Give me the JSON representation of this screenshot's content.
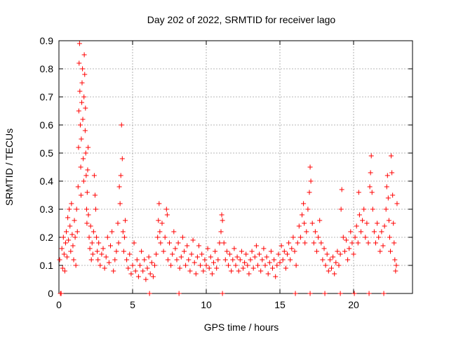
{
  "chart_data": {
    "type": "scatter",
    "title": "Day 202 of 2022, SRMTID for receiver lago",
    "xlabel": "GPS time / hours",
    "ylabel": "SRMTID / TECUs",
    "xlim": [
      0,
      24
    ],
    "ylim": [
      0,
      0.9
    ],
    "xticks": [
      0,
      5,
      10,
      15,
      20
    ],
    "yticks": [
      0,
      0.1,
      0.2,
      0.3,
      0.4,
      0.5,
      0.6,
      0.7,
      0.8,
      0.9
    ],
    "xtick_labels": [
      "0",
      "5",
      "10",
      "15",
      "20"
    ],
    "ytick_labels": [
      "0",
      "0.1",
      "0.2",
      "0.3",
      "0.4",
      "0.5",
      "0.6",
      "0.7",
      "0.8",
      "0.9"
    ],
    "grid": true,
    "marker": "+",
    "color": "#ff0000",
    "series": [
      {
        "name": "SRMTID",
        "points": [
          [
            0.05,
            0.12
          ],
          [
            0.1,
            0.0
          ],
          [
            0.2,
            0.16
          ],
          [
            0.25,
            0.09
          ],
          [
            0.3,
            0.2
          ],
          [
            0.35,
            0.14
          ],
          [
            0.4,
            0.08
          ],
          [
            0.45,
            0.18
          ],
          [
            0.5,
            0.22
          ],
          [
            0.55,
            0.13
          ],
          [
            0.6,
            0.27
          ],
          [
            0.65,
            0.19
          ],
          [
            0.7,
            0.3
          ],
          [
            0.75,
            0.24
          ],
          [
            0.8,
            0.15
          ],
          [
            0.85,
            0.32
          ],
          [
            0.9,
            0.21
          ],
          [
            0.95,
            0.17
          ],
          [
            1.0,
            0.12
          ],
          [
            1.05,
            0.26
          ],
          [
            1.1,
            0.2
          ],
          [
            1.15,
            0.1
          ],
          [
            1.2,
            0.3
          ],
          [
            1.25,
            0.22
          ],
          [
            1.3,
            0.38
          ],
          [
            1.33,
            0.52
          ],
          [
            1.35,
            0.65
          ],
          [
            1.37,
            0.82
          ],
          [
            1.4,
            0.89
          ],
          [
            1.42,
            0.72
          ],
          [
            1.45,
            0.6
          ],
          [
            1.48,
            0.45
          ],
          [
            1.5,
            0.35
          ],
          [
            1.52,
            0.55
          ],
          [
            1.55,
            0.68
          ],
          [
            1.57,
            0.75
          ],
          [
            1.6,
            0.8
          ],
          [
            1.62,
            0.62
          ],
          [
            1.65,
            0.48
          ],
          [
            1.68,
            0.4
          ],
          [
            1.7,
            0.7
          ],
          [
            1.72,
            0.85
          ],
          [
            1.75,
            0.78
          ],
          [
            1.78,
            0.58
          ],
          [
            1.8,
            0.66
          ],
          [
            1.82,
            0.5
          ],
          [
            1.85,
            0.42
          ],
          [
            1.88,
            0.3
          ],
          [
            1.9,
            0.25
          ],
          [
            1.92,
            0.36
          ],
          [
            1.95,
            0.44
          ],
          [
            1.98,
            0.52
          ],
          [
            2.0,
            0.28
          ],
          [
            2.05,
            0.2
          ],
          [
            2.1,
            0.16
          ],
          [
            2.15,
            0.24
          ],
          [
            2.2,
            0.12
          ],
          [
            2.25,
            0.18
          ],
          [
            2.3,
            0.14
          ],
          [
            2.35,
            0.22
          ],
          [
            2.4,
            0.42
          ],
          [
            2.45,
            0.35
          ],
          [
            2.5,
            0.3
          ],
          [
            2.55,
            0.2
          ],
          [
            2.6,
            0.15
          ],
          [
            2.65,
            0.12
          ],
          [
            2.7,
            0.18
          ],
          [
            2.8,
            0.1
          ],
          [
            2.9,
            0.14
          ],
          [
            3.0,
            0.16
          ],
          [
            3.1,
            0.09
          ],
          [
            3.2,
            0.13
          ],
          [
            3.3,
            0.2
          ],
          [
            3.4,
            0.11
          ],
          [
            3.5,
            0.17
          ],
          [
            3.6,
            0.22
          ],
          [
            3.7,
            0.08
          ],
          [
            3.8,
            0.12
          ],
          [
            3.9,
            0.15
          ],
          [
            4.0,
            0.25
          ],
          [
            4.05,
            0.18
          ],
          [
            4.1,
            0.38
          ],
          [
            4.15,
            0.32
          ],
          [
            4.2,
            0.42
          ],
          [
            4.25,
            0.6
          ],
          [
            4.3,
            0.48
          ],
          [
            4.35,
            0.22
          ],
          [
            4.4,
            0.15
          ],
          [
            4.45,
            0.2
          ],
          [
            4.5,
            0.26
          ],
          [
            4.6,
            0.12
          ],
          [
            4.7,
            0.09
          ],
          [
            4.8,
            0.14
          ],
          [
            4.9,
            0.07
          ],
          [
            5.0,
            0.1
          ],
          [
            5.1,
            0.18
          ],
          [
            5.2,
            0.08
          ],
          [
            5.3,
            0.12
          ],
          [
            5.4,
            0.06
          ],
          [
            5.5,
            0.1
          ],
          [
            5.6,
            0.15
          ],
          [
            5.7,
            0.08
          ],
          [
            5.8,
            0.12
          ],
          [
            5.9,
            0.05
          ],
          [
            6.0,
            0.09
          ],
          [
            6.1,
            0.13
          ],
          [
            6.2,
            0.07
          ],
          [
            6.3,
            0.11
          ],
          [
            6.4,
            0.06
          ],
          [
            6.5,
            0.1
          ],
          [
            6.6,
            0.14
          ],
          [
            6.7,
            0.2
          ],
          [
            6.75,
            0.26
          ],
          [
            6.8,
            0.32
          ],
          [
            6.85,
            0.22
          ],
          [
            6.9,
            0.18
          ],
          [
            7.0,
            0.25
          ],
          [
            7.1,
            0.15
          ],
          [
            7.2,
            0.2
          ],
          [
            7.3,
            0.3
          ],
          [
            7.35,
            0.28
          ],
          [
            7.4,
            0.12
          ],
          [
            7.5,
            0.18
          ],
          [
            7.6,
            0.1
          ],
          [
            7.7,
            0.14
          ],
          [
            7.8,
            0.22
          ],
          [
            7.9,
            0.16
          ],
          [
            8.0,
            0.12
          ],
          [
            8.1,
            0.18
          ],
          [
            8.2,
            0.09
          ],
          [
            8.3,
            0.13
          ],
          [
            8.4,
            0.2
          ],
          [
            8.5,
            0.15
          ],
          [
            8.6,
            0.1
          ],
          [
            8.7,
            0.17
          ],
          [
            8.8,
            0.12
          ],
          [
            8.9,
            0.08
          ],
          [
            9.0,
            0.14
          ],
          [
            9.1,
            0.19
          ],
          [
            9.2,
            0.11
          ],
          [
            9.3,
            0.07
          ],
          [
            9.4,
            0.13
          ],
          [
            9.5,
            0.17
          ],
          [
            9.6,
            0.1
          ],
          [
            9.7,
            0.14
          ],
          [
            9.8,
            0.08
          ],
          [
            9.9,
            0.12
          ],
          [
            10.0,
            0.1
          ],
          [
            10.1,
            0.16
          ],
          [
            10.2,
            0.09
          ],
          [
            10.3,
            0.13
          ],
          [
            10.4,
            0.07
          ],
          [
            10.5,
            0.11
          ],
          [
            10.6,
            0.15
          ],
          [
            10.7,
            0.09
          ],
          [
            10.8,
            0.12
          ],
          [
            10.9,
            0.18
          ],
          [
            11.0,
            0.22
          ],
          [
            11.05,
            0.28
          ],
          [
            11.1,
            0.26
          ],
          [
            11.2,
            0.18
          ],
          [
            11.3,
            0.12
          ],
          [
            11.4,
            0.15
          ],
          [
            11.5,
            0.1
          ],
          [
            11.6,
            0.14
          ],
          [
            11.7,
            0.08
          ],
          [
            11.8,
            0.12
          ],
          [
            11.9,
            0.16
          ],
          [
            12.0,
            0.1
          ],
          [
            12.1,
            0.13
          ],
          [
            12.2,
            0.08
          ],
          [
            12.3,
            0.12
          ],
          [
            12.4,
            0.15
          ],
          [
            12.5,
            0.09
          ],
          [
            12.6,
            0.11
          ],
          [
            12.7,
            0.14
          ],
          [
            12.8,
            0.1
          ],
          [
            12.9,
            0.07
          ],
          [
            13.0,
            0.12
          ],
          [
            13.1,
            0.15
          ],
          [
            13.2,
            0.09
          ],
          [
            13.3,
            0.13
          ],
          [
            13.4,
            0.17
          ],
          [
            13.5,
            0.1
          ],
          [
            13.6,
            0.14
          ],
          [
            13.7,
            0.08
          ],
          [
            13.8,
            0.12
          ],
          [
            13.9,
            0.16
          ],
          [
            14.0,
            0.1
          ],
          [
            14.1,
            0.13
          ],
          [
            14.2,
            0.07
          ],
          [
            14.3,
            0.11
          ],
          [
            14.4,
            0.15
          ],
          [
            14.5,
            0.09
          ],
          [
            14.6,
            0.12
          ],
          [
            14.7,
            0.06
          ],
          [
            14.8,
            0.1
          ],
          [
            14.9,
            0.14
          ],
          [
            15.0,
            0.11
          ],
          [
            15.1,
            0.17
          ],
          [
            15.2,
            0.12
          ],
          [
            15.3,
            0.15
          ],
          [
            15.4,
            0.09
          ],
          [
            15.5,
            0.14
          ],
          [
            15.6,
            0.18
          ],
          [
            15.7,
            0.12
          ],
          [
            15.8,
            0.16
          ],
          [
            15.9,
            0.2
          ],
          [
            16.0,
            0.15
          ],
          [
            16.1,
            0.1
          ],
          [
            16.2,
            0.18
          ],
          [
            16.3,
            0.24
          ],
          [
            16.4,
            0.2
          ],
          [
            16.5,
            0.28
          ],
          [
            16.6,
            0.32
          ],
          [
            16.65,
            0.25
          ],
          [
            16.7,
            0.18
          ],
          [
            16.8,
            0.22
          ],
          [
            16.9,
            0.3
          ],
          [
            17.0,
            0.36
          ],
          [
            17.05,
            0.45
          ],
          [
            17.1,
            0.4
          ],
          [
            17.2,
            0.25
          ],
          [
            17.3,
            0.18
          ],
          [
            17.4,
            0.22
          ],
          [
            17.5,
            0.15
          ],
          [
            17.6,
            0.2
          ],
          [
            17.7,
            0.26
          ],
          [
            17.8,
            0.18
          ],
          [
            17.9,
            0.12
          ],
          [
            18.0,
            0.16
          ],
          [
            18.1,
            0.1
          ],
          [
            18.2,
            0.14
          ],
          [
            18.3,
            0.08
          ],
          [
            18.4,
            0.12
          ],
          [
            18.5,
            0.09
          ],
          [
            18.6,
            0.13
          ],
          [
            18.7,
            0.07
          ],
          [
            18.8,
            0.11
          ],
          [
            18.9,
            0.15
          ],
          [
            19.0,
            0.1
          ],
          [
            19.1,
            0.14
          ],
          [
            19.15,
            0.3
          ],
          [
            19.2,
            0.37
          ],
          [
            19.3,
            0.2
          ],
          [
            19.4,
            0.15
          ],
          [
            19.5,
            0.19
          ],
          [
            19.6,
            0.12
          ],
          [
            19.7,
            0.16
          ],
          [
            19.8,
            0.22
          ],
          [
            19.9,
            0.18
          ],
          [
            20.0,
            0.14
          ],
          [
            20.1,
            0.2
          ],
          [
            20.2,
            0.24
          ],
          [
            20.3,
            0.18
          ],
          [
            20.35,
            0.36
          ],
          [
            20.4,
            0.28
          ],
          [
            20.5,
            0.22
          ],
          [
            20.6,
            0.26
          ],
          [
            20.7,
            0.3
          ],
          [
            20.8,
            0.2
          ],
          [
            20.9,
            0.25
          ],
          [
            21.0,
            0.18
          ],
          [
            21.1,
            0.38
          ],
          [
            21.15,
            0.43
          ],
          [
            21.2,
            0.49
          ],
          [
            21.25,
            0.36
          ],
          [
            21.3,
            0.3
          ],
          [
            21.4,
            0.22
          ],
          [
            21.5,
            0.18
          ],
          [
            21.6,
            0.25
          ],
          [
            21.7,
            0.2
          ],
          [
            21.8,
            0.15
          ],
          [
            21.9,
            0.22
          ],
          [
            22.0,
            0.17
          ],
          [
            22.1,
            0.24
          ],
          [
            22.2,
            0.3
          ],
          [
            22.25,
            0.38
          ],
          [
            22.3,
            0.42
          ],
          [
            22.35,
            0.34
          ],
          [
            22.4,
            0.26
          ],
          [
            22.45,
            0.2
          ],
          [
            22.5,
            0.15
          ],
          [
            22.55,
            0.49
          ],
          [
            22.6,
            0.43
          ],
          [
            22.65,
            0.35
          ],
          [
            22.7,
            0.25
          ],
          [
            22.75,
            0.18
          ],
          [
            22.8,
            0.12
          ],
          [
            22.85,
            0.08
          ],
          [
            22.9,
            0.1
          ],
          [
            22.95,
            0.32
          ],
          [
            0.15,
            0.0
          ],
          [
            6.15,
            0.0
          ],
          [
            8.15,
            0.0
          ],
          [
            11.1,
            0.0
          ],
          [
            16.05,
            0.0
          ],
          [
            17.05,
            0.0
          ],
          [
            18.05,
            0.0
          ],
          [
            19.1,
            0.0
          ],
          [
            20.05,
            0.0
          ],
          [
            21.05,
            0.0
          ],
          [
            22.05,
            0.0
          ]
        ]
      }
    ]
  }
}
